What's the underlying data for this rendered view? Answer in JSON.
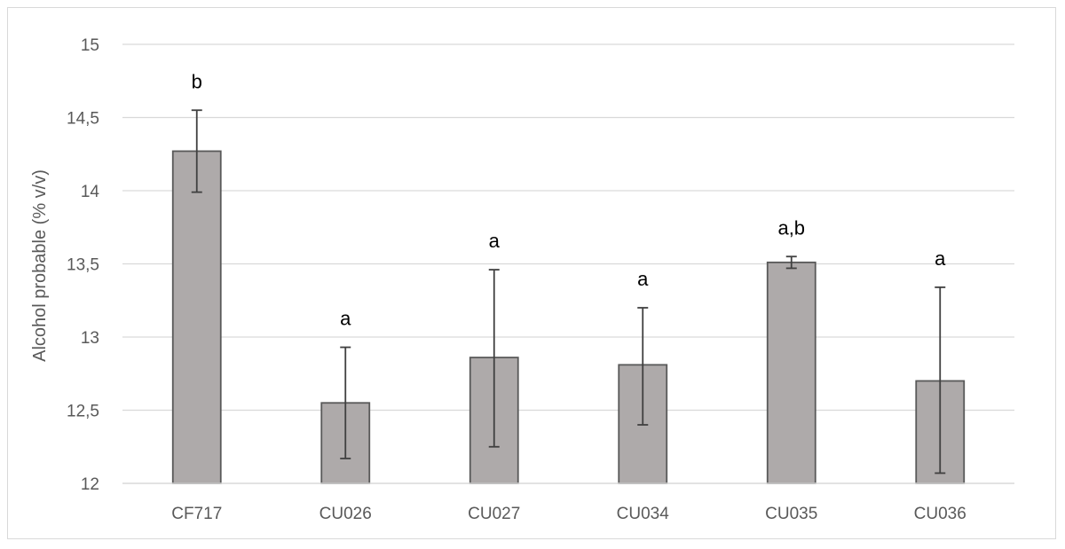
{
  "chart_data": {
    "type": "bar",
    "ylabel": "Alcohol probable (% v/v)",
    "xlabel": "",
    "title": "",
    "ylim": [
      12,
      15
    ],
    "ytick_values": [
      12,
      12.5,
      13,
      13.5,
      14,
      14.5,
      15
    ],
    "ytick_labels": [
      "12",
      "12,5",
      "13",
      "13,5",
      "14",
      "14,5",
      "15"
    ],
    "grid": true,
    "legend": "none",
    "categories": [
      "CF717",
      "CU026",
      "CU027",
      "CU034",
      "CU035",
      "CU036"
    ],
    "values": [
      14.27,
      12.55,
      12.86,
      12.81,
      13.51,
      12.7
    ],
    "error_low": [
      13.99,
      12.17,
      12.25,
      12.4,
      13.47,
      12.07
    ],
    "error_high": [
      14.55,
      12.93,
      13.46,
      13.2,
      13.55,
      13.34
    ],
    "significance_labels": [
      "b",
      "a",
      "a",
      "a",
      "a,b",
      "a"
    ],
    "colors": {
      "bar_fill": "#aeaaaa",
      "bar_stroke": "#595959",
      "gridline": "#d9d9d9",
      "error_bar": "#404040"
    }
  }
}
